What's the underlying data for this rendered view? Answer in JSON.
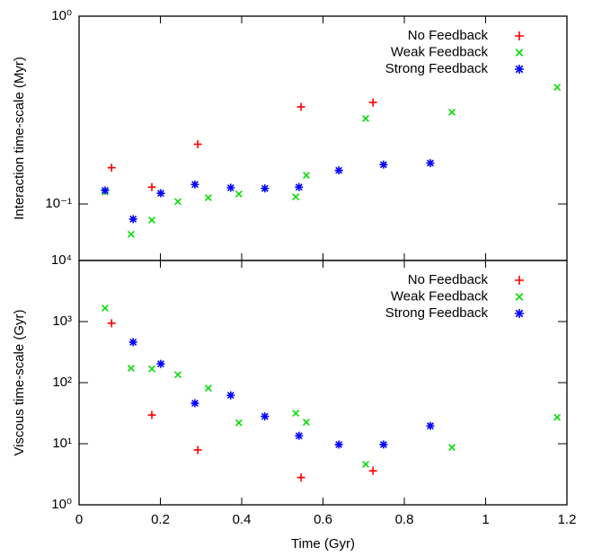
{
  "chart_data": [
    {
      "type": "scatter",
      "y_label": "Interaction time-scale (Myr)",
      "y_log": true,
      "legend": "top-right",
      "xlim": [
        0,
        1.2
      ],
      "xticks": [
        0,
        0.2,
        0.4,
        0.6,
        0.8,
        1,
        1.2
      ],
      "ylim": [
        0.05,
        1
      ],
      "yticks": [
        {
          "value": 0.1,
          "label": "10⁻¹"
        },
        {
          "value": 1,
          "label": "10⁰"
        }
      ],
      "series": [
        {
          "name": "No Feedback",
          "color": "#ff0000",
          "marker": "plus",
          "x": [
            0.08,
            0.179,
            0.292,
            0.546,
            0.723
          ],
          "values": [
            0.156,
            0.123,
            0.208,
            0.329,
            0.347
          ]
        },
        {
          "name": "Weak Feedback",
          "color": "#00dd00",
          "marker": "cross",
          "x": [
            0.064,
            0.128,
            0.179,
            0.243,
            0.318,
            0.393,
            0.533,
            0.559,
            0.705,
            0.917,
            1.176
          ],
          "values": [
            0.116,
            0.069,
            0.082,
            0.103,
            0.108,
            0.113,
            0.109,
            0.142,
            0.285,
            0.308,
            0.418
          ]
        },
        {
          "name": "Strong Feedback",
          "color": "#0000ff",
          "marker": "star",
          "x": [
            0.064,
            0.133,
            0.201,
            0.285,
            0.373,
            0.457,
            0.541,
            0.639,
            0.749,
            0.864
          ],
          "values": [
            0.118,
            0.083,
            0.114,
            0.127,
            0.122,
            0.121,
            0.123,
            0.151,
            0.162,
            0.165
          ]
        }
      ]
    },
    {
      "type": "scatter",
      "x_label": "Time (Gyr)",
      "y_label": "Viscous time-scale (Gyr)",
      "y_log": true,
      "legend": "top-right",
      "xlim": [
        0,
        1.2
      ],
      "xticks": [
        0,
        0.2,
        0.4,
        0.6,
        0.8,
        1,
        1.2
      ],
      "ylim": [
        1,
        10000
      ],
      "yticks": [
        {
          "value": 1,
          "label": "10⁰"
        },
        {
          "value": 10,
          "label": "10¹"
        },
        {
          "value": 100,
          "label": "10²"
        },
        {
          "value": 1000,
          "label": "10³"
        },
        {
          "value": 10000,
          "label": "10⁴"
        }
      ],
      "series": [
        {
          "name": "No Feedback",
          "color": "#ff0000",
          "marker": "plus",
          "x": [
            0.08,
            0.179,
            0.292,
            0.546,
            0.723
          ],
          "values": [
            940,
            29.5,
            7.9,
            2.8,
            3.6
          ]
        },
        {
          "name": "Weak Feedback",
          "color": "#00dd00",
          "marker": "cross",
          "x": [
            0.064,
            0.128,
            0.179,
            0.243,
            0.318,
            0.393,
            0.533,
            0.559,
            0.705,
            0.917,
            1.176
          ],
          "values": [
            1660,
            172,
            168,
            135,
            81,
            22,
            31.6,
            22.5,
            4.6,
            8.7,
            27
          ]
        },
        {
          "name": "Strong Feedback",
          "color": "#0000ff",
          "marker": "star",
          "x": [
            0.133,
            0.201,
            0.285,
            0.373,
            0.457,
            0.541,
            0.639,
            0.749,
            0.864
          ],
          "values": [
            460,
            203,
            46,
            62,
            28,
            13.5,
            9.7,
            9.7,
            19.6
          ]
        }
      ]
    }
  ]
}
